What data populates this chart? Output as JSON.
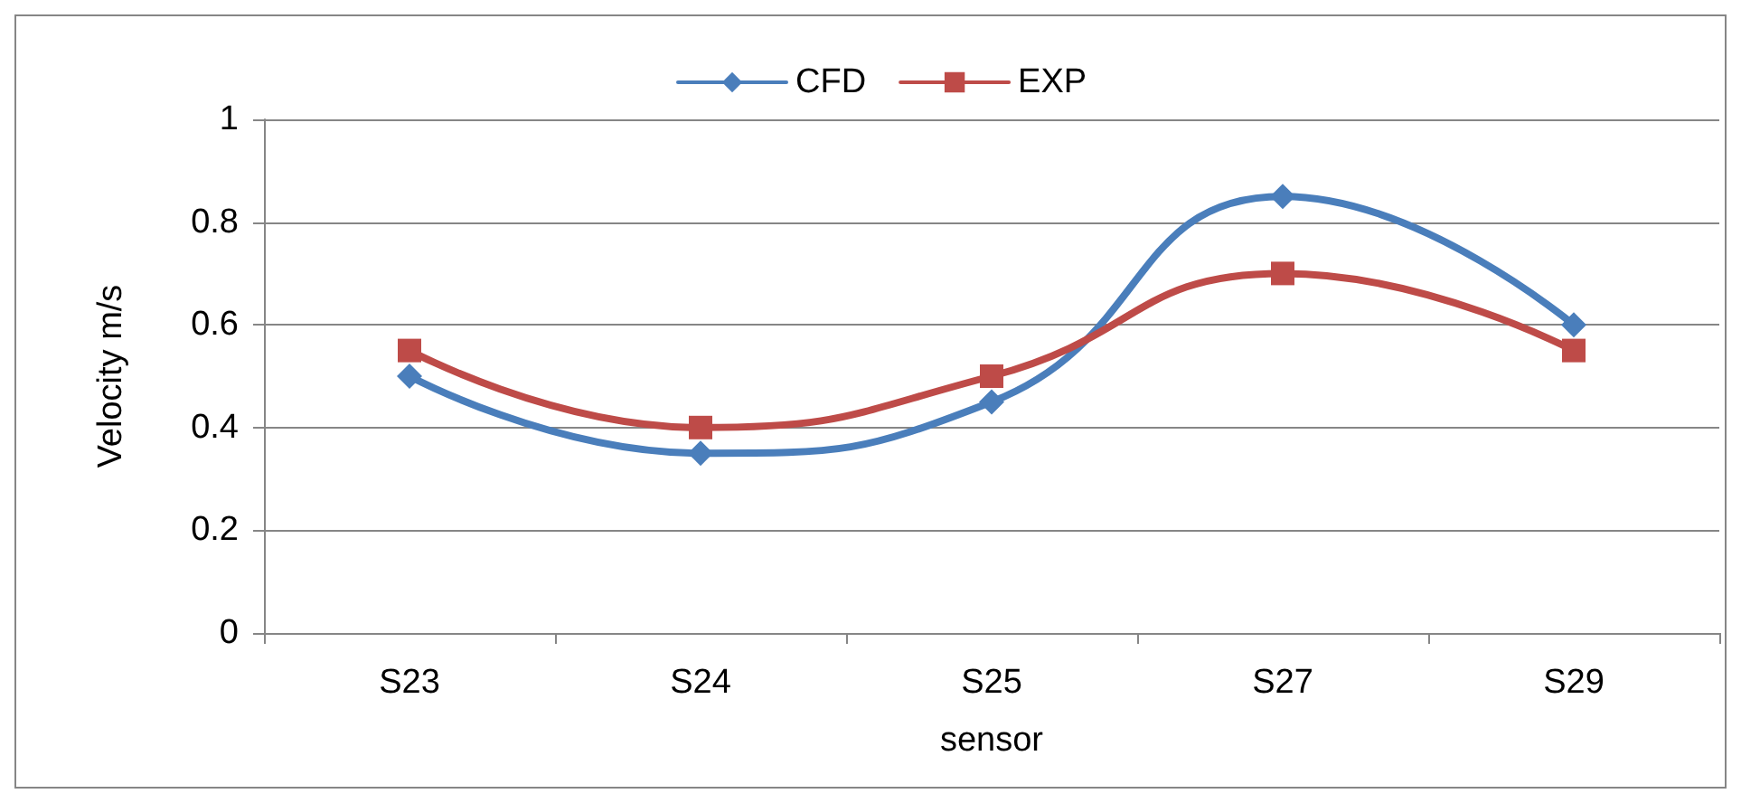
{
  "chart_data": {
    "type": "line",
    "xlabel": "sensor",
    "ylabel": "Velocity m/s",
    "categories": [
      "S23",
      "S24",
      "S25",
      "S27",
      "S29"
    ],
    "series": [
      {
        "name": "CFD",
        "color": "#4a7ebb",
        "marker": "diamond",
        "values": [
          0.5,
          0.35,
          0.45,
          0.85,
          0.6
        ]
      },
      {
        "name": "EXP",
        "color": "#be4b48",
        "marker": "square",
        "values": [
          0.55,
          0.4,
          0.5,
          0.7,
          0.55
        ]
      }
    ],
    "ylim": [
      0,
      1
    ],
    "yticks": [
      0,
      0.2,
      0.4,
      0.6,
      0.8,
      1
    ],
    "grid": "y",
    "legend": "top",
    "line_style": "solid"
  }
}
